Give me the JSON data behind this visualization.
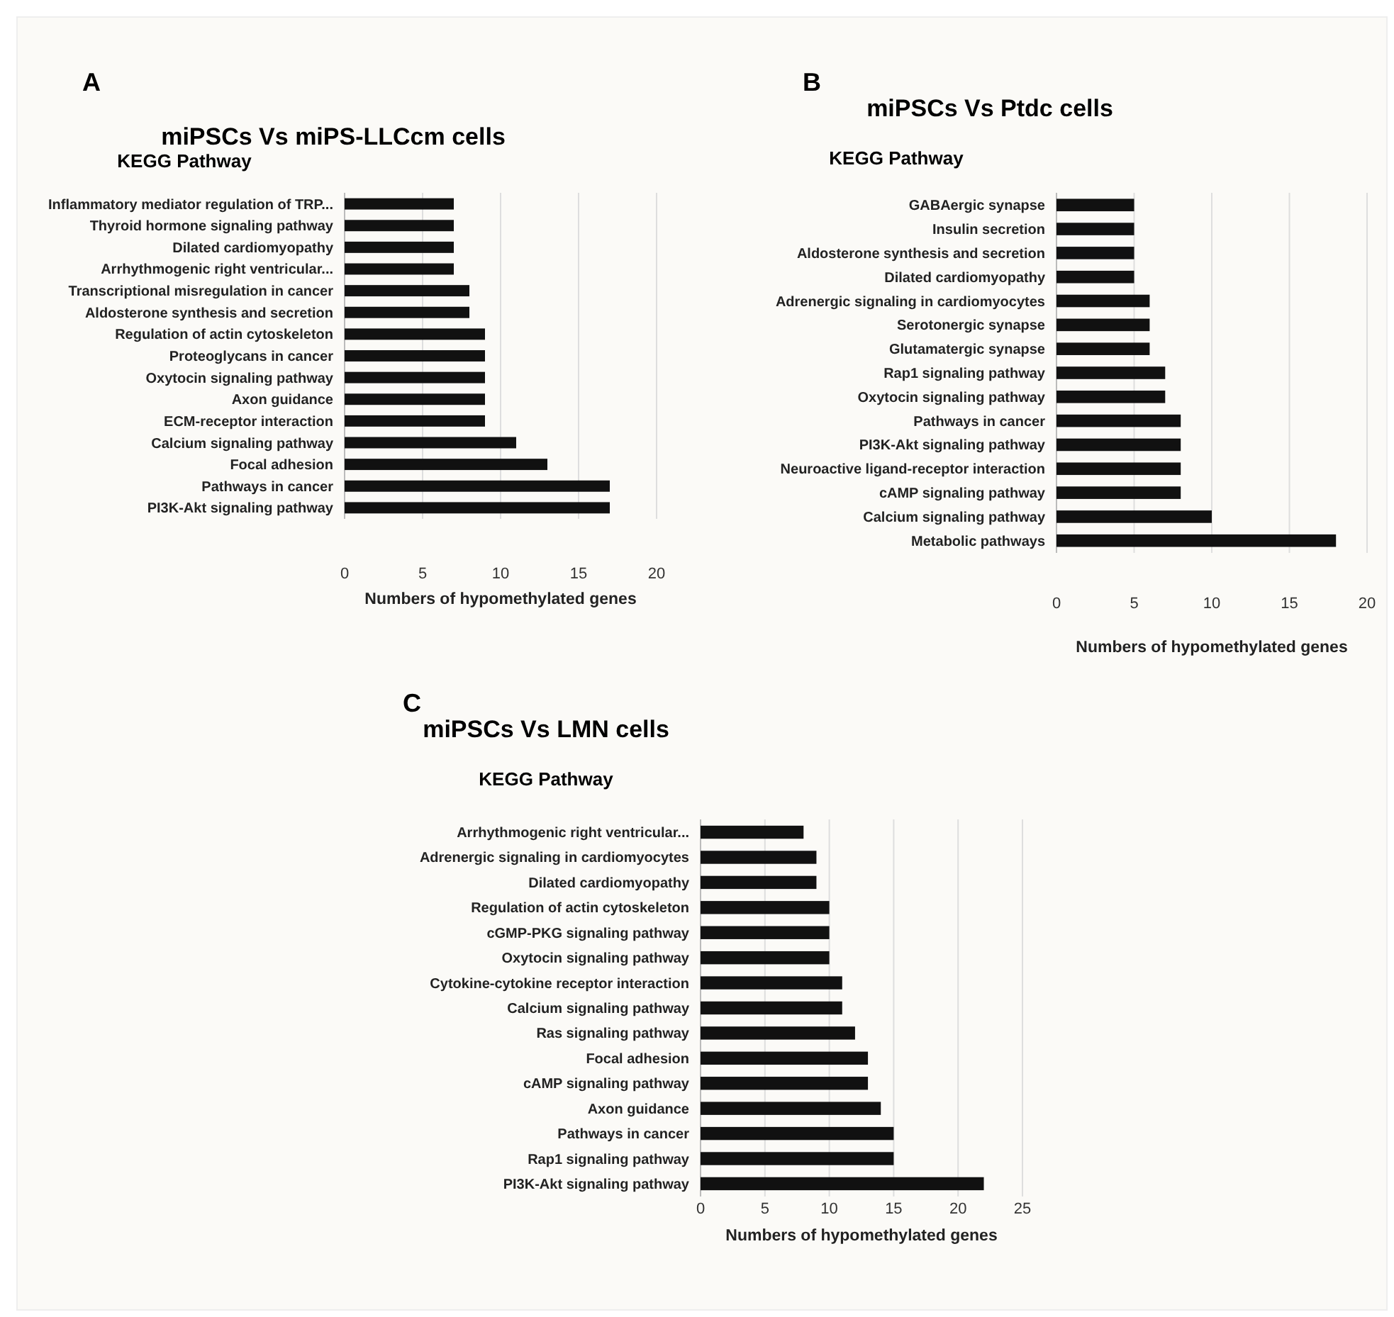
{
  "chart_data": [
    {
      "type": "bar",
      "orientation": "horizontal",
      "title": "miPSCs Vs miPS-LLCcm cells",
      "xlabel": "Numbers of hypomethylated genes",
      "ylabel": "KEGG Pathway",
      "annotations": [
        "A"
      ],
      "categories": [
        "Inflammatory mediator regulation of TRP...",
        "Thyroid hormone signaling pathway",
        "Dilated cardiomyopathy",
        "Arrhythmogenic right ventricular...",
        "Transcriptional misregulation in cancer",
        "Aldosterone synthesis and secretion",
        "Regulation of actin cytoskeleton",
        "Proteoglycans in cancer",
        "Oxytocin signaling pathway",
        "Axon guidance",
        "ECM-receptor interaction",
        "Calcium signaling pathway",
        "Focal adhesion",
        "Pathways in cancer",
        "PI3K-Akt signaling pathway"
      ],
      "values": [
        7,
        7,
        7,
        7,
        8,
        8,
        9,
        9,
        9,
        9,
        9,
        11,
        13,
        17,
        17
      ],
      "color": "#111111",
      "xlim": [
        0,
        20
      ],
      "xticks": [
        0,
        5,
        10,
        15,
        20
      ],
      "grid": "x"
    },
    {
      "type": "bar",
      "orientation": "horizontal",
      "title": "miPSCs Vs Ptdc cells",
      "xlabel": "Numbers of hypomethylated genes",
      "ylabel": "KEGG Pathway",
      "annotations": [
        "B"
      ],
      "categories": [
        "GABAergic synapse",
        "Insulin secretion",
        "Aldosterone synthesis and secretion",
        "Dilated cardiomyopathy",
        "Adrenergic signaling in cardiomyocytes",
        "Serotonergic synapse",
        "Glutamatergic synapse",
        "Rap1 signaling pathway",
        "Oxytocin signaling pathway",
        "Pathways in cancer",
        "PI3K-Akt signaling pathway",
        "Neuroactive ligand-receptor interaction",
        "cAMP signaling pathway",
        "Calcium signaling pathway",
        "Metabolic pathways"
      ],
      "values": [
        5,
        5,
        5,
        5,
        6,
        6,
        6,
        7,
        7,
        8,
        8,
        8,
        8,
        10,
        18
      ],
      "color": "#111111",
      "xlim": [
        0,
        20
      ],
      "xticks": [
        0,
        5,
        10,
        15,
        20
      ],
      "grid": "x"
    },
    {
      "type": "bar",
      "orientation": "horizontal",
      "title": "miPSCs Vs LMN cells",
      "xlabel": "Numbers of hypomethylated genes",
      "ylabel": "KEGG Pathway",
      "annotations": [
        "C"
      ],
      "categories": [
        "Arrhythmogenic right ventricular...",
        "Adrenergic signaling in cardiomyocytes",
        "Dilated cardiomyopathy",
        "Regulation of actin cytoskeleton",
        "cGMP-PKG signaling pathway",
        "Oxytocin signaling pathway",
        "Cytokine-cytokine receptor interaction",
        "Calcium signaling pathway",
        "Ras signaling pathway",
        "Focal adhesion",
        "cAMP signaling pathway",
        "Axon guidance",
        "Pathways in cancer",
        "Rap1 signaling pathway",
        "PI3K-Akt signaling pathway"
      ],
      "values": [
        8,
        9,
        9,
        10,
        10,
        10,
        11,
        11,
        12,
        13,
        13,
        14,
        15,
        15,
        22
      ],
      "color": "#111111",
      "xlim": [
        0,
        25
      ],
      "xticks": [
        0,
        5,
        10,
        15,
        20,
        25
      ],
      "grid": "x"
    }
  ]
}
